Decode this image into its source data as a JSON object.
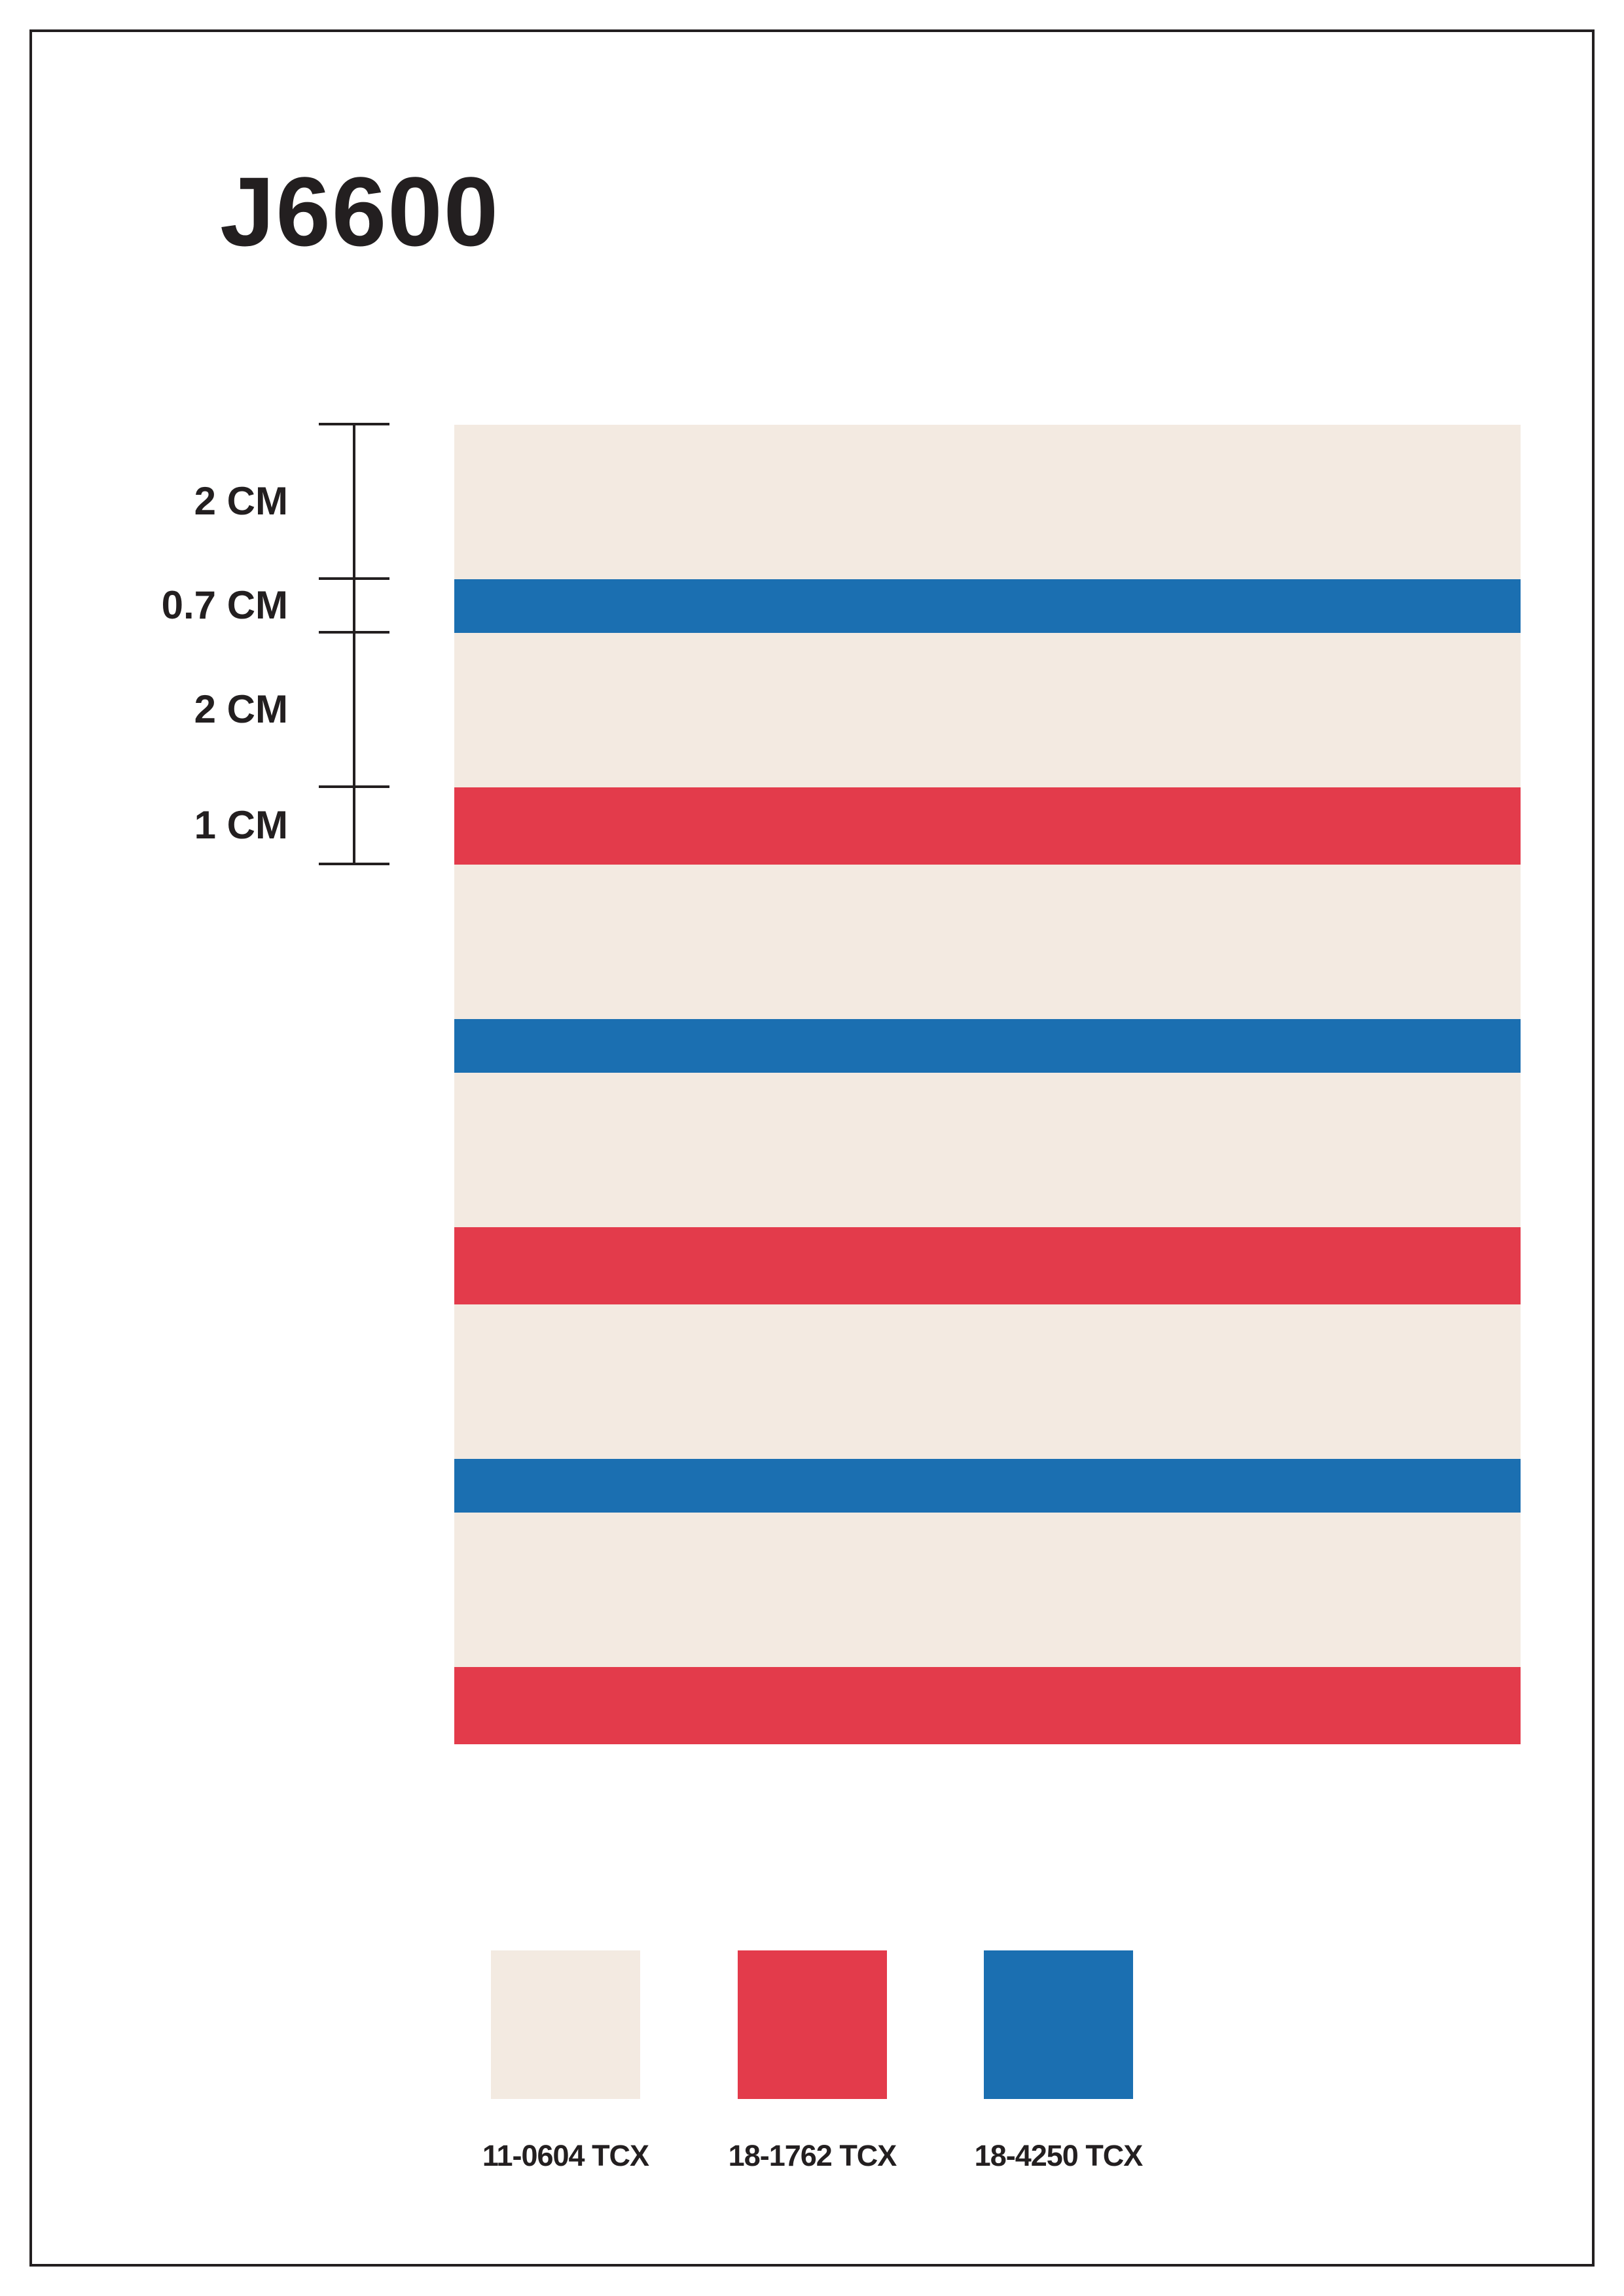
{
  "title": "J6600",
  "colors": {
    "cream": "#f3eae1",
    "red": "#e33b4b",
    "blue": "#1b6fb1",
    "ink": "#231f20",
    "page": "#ffffff"
  },
  "ruler": {
    "unit": "CM",
    "segments": [
      {
        "label": "2 CM",
        "cm": 2
      },
      {
        "label": "0.7 CM",
        "cm": 0.7
      },
      {
        "label": "2 CM",
        "cm": 2
      },
      {
        "label": "1 CM",
        "cm": 1
      }
    ]
  },
  "stripe_pattern": {
    "repeats": 3,
    "sequence": [
      {
        "color": "cream",
        "cm": 2
      },
      {
        "color": "blue",
        "cm": 0.7
      },
      {
        "color": "cream",
        "cm": 2
      },
      {
        "color": "red",
        "cm": 1
      }
    ]
  },
  "palette": [
    {
      "code": "11-0604 TCX",
      "color": "cream"
    },
    {
      "code": "18-1762 TCX",
      "color": "red"
    },
    {
      "code": "18-4250 TCX",
      "color": "blue"
    }
  ]
}
